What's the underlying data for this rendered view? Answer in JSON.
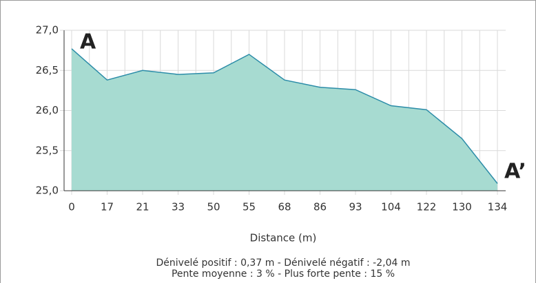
{
  "chart_data": {
    "type": "area",
    "categories": [
      "0",
      "17",
      "21",
      "33",
      "50",
      "55",
      "68",
      "86",
      "93",
      "104",
      "122",
      "130",
      "134"
    ],
    "values": [
      26.77,
      26.38,
      26.5,
      26.45,
      26.47,
      26.7,
      26.38,
      26.29,
      26.26,
      26.06,
      26.01,
      25.65,
      25.09
    ],
    "color": "#a7dbd1",
    "line_color": "#2b8ca8",
    "ylim": [
      25.0,
      27.0
    ],
    "yticks": [
      {
        "value": 25.0,
        "label": "25,0"
      },
      {
        "value": 25.5,
        "label": "25,5"
      },
      {
        "value": 26.0,
        "label": "26,0"
      },
      {
        "value": 26.5,
        "label": "26,5"
      },
      {
        "value": 27.0,
        "label": "27,0"
      }
    ],
    "grid": true,
    "x_label": "Distance (m)",
    "annotations": [
      "A",
      "A’"
    ],
    "footer": [
      "Dénivelé positif : 0,37 m - Dénivelé négatif : -2,04 m",
      "Pente moyenne : 3 % - Plus forte pente : 15 %"
    ]
  }
}
